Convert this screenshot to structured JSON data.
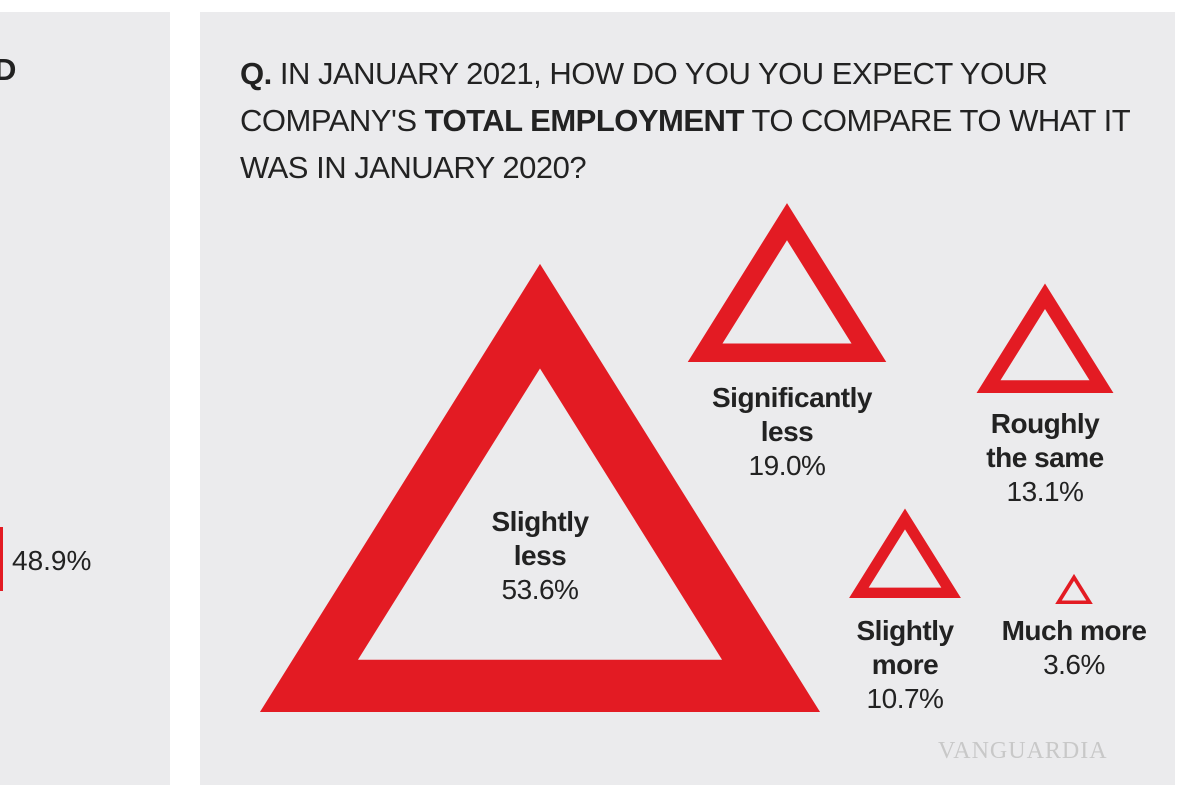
{
  "left_panel": {
    "title_fragment": "D",
    "values": [
      48.9
    ],
    "value_labels": [
      "48.9%"
    ]
  },
  "chart_data": {
    "type": "triangle",
    "title_parts": [
      {
        "text": "Q.",
        "bold": true
      },
      {
        "text": " IN JANUARY 2021, HOW DO YOU YOU EXPECT YOUR COMPANY'S ",
        "bold": false
      },
      {
        "text": "TOTAL EMPLOYMENT",
        "bold": true
      },
      {
        "text": " TO COMPARE TO WHAT IT WAS IN JANUARY 2020?",
        "bold": false
      }
    ],
    "categories": [
      "Slightly less",
      "Significantly less",
      "Roughly the same",
      "Slightly more",
      "Much more"
    ],
    "values": [
      53.6,
      19.0,
      13.1,
      10.7,
      3.6
    ],
    "value_labels": [
      "53.6%",
      "19.0%",
      "13.1%",
      "10.7%",
      "3.6%"
    ],
    "color": "#e31b23"
  },
  "watermark": "VANGUARDIA"
}
